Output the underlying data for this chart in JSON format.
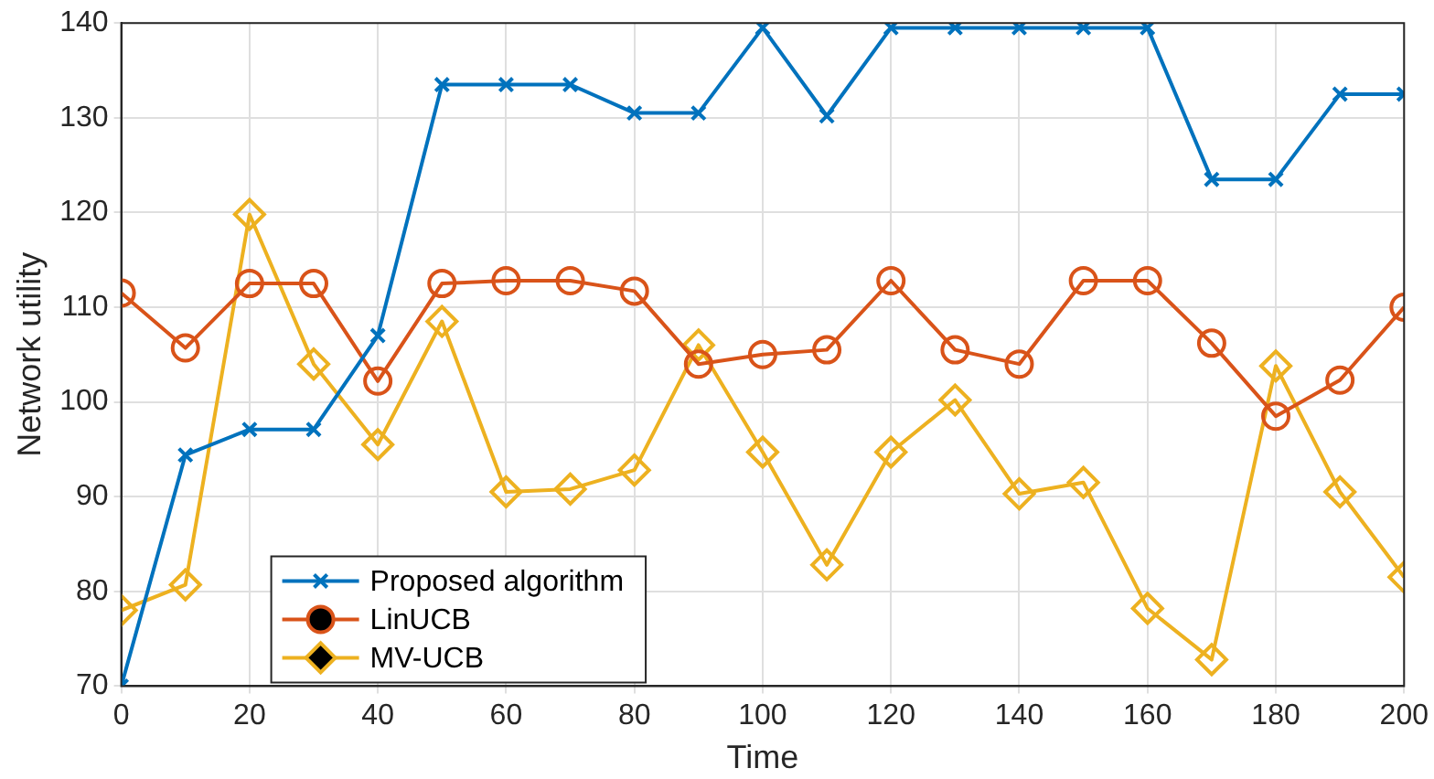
{
  "chart_data": {
    "type": "line",
    "xlabel": "Time",
    "ylabel": "Network utility",
    "x": [
      0,
      10,
      20,
      30,
      40,
      50,
      60,
      70,
      80,
      90,
      100,
      110,
      120,
      130,
      140,
      150,
      160,
      170,
      180,
      190,
      200
    ],
    "series": [
      {
        "name": "Proposed algorithm",
        "color": "#0072bd",
        "marker": "cross",
        "values": [
          70,
          94.4,
          97.1,
          97.1,
          107,
          133.5,
          133.5,
          133.5,
          130.5,
          130.5,
          139.5,
          130.2,
          139.5,
          139.5,
          139.5,
          139.5,
          139.5,
          123.5,
          123.5,
          132.5,
          132.5
        ]
      },
      {
        "name": "LinUCB",
        "color": "#d95319",
        "marker": "circle",
        "values": [
          111.5,
          105.7,
          112.5,
          112.5,
          102.2,
          112.5,
          112.8,
          112.8,
          111.7,
          104,
          105,
          105.5,
          112.8,
          105.5,
          104,
          112.8,
          112.8,
          106.2,
          98.5,
          102.3,
          110
        ]
      },
      {
        "name": "MV-UCB",
        "color": "#edb120",
        "marker": "diamond",
        "values": [
          78,
          80.7,
          119.8,
          104,
          95.5,
          108.5,
          90.5,
          90.8,
          92.8,
          106,
          94.7,
          82.8,
          94.7,
          100.2,
          90.3,
          91.5,
          78.2,
          72.8,
          103.8,
          90.5,
          81.5
        ]
      }
    ],
    "xlim": [
      0,
      200
    ],
    "xticks": [
      0,
      20,
      40,
      60,
      80,
      100,
      120,
      140,
      160,
      180,
      200
    ],
    "ylim": [
      70,
      140
    ],
    "yticks": [
      70,
      80,
      90,
      100,
      110,
      120,
      130,
      140
    ],
    "grid": true,
    "legend": "bottom left",
    "line_style": "solid"
  }
}
